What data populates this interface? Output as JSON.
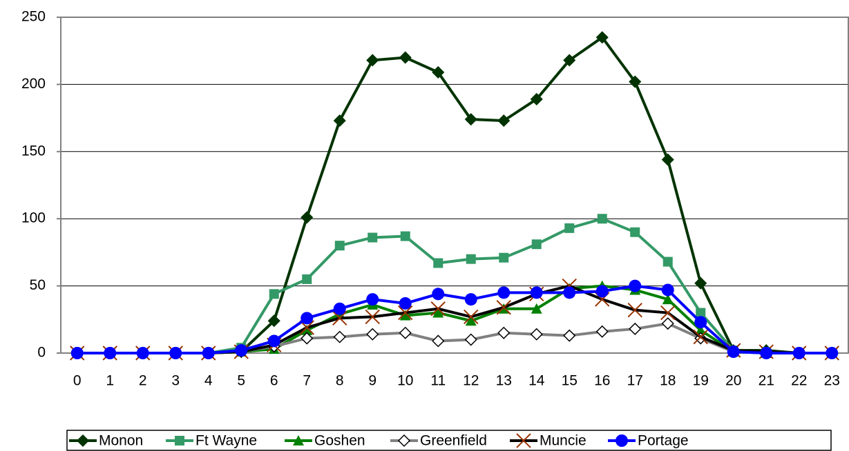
{
  "chart_data": {
    "type": "line",
    "categories": [
      "0",
      "1",
      "2",
      "3",
      "4",
      "5",
      "6",
      "7",
      "8",
      "9",
      "10",
      "11",
      "12",
      "13",
      "14",
      "15",
      "16",
      "17",
      "18",
      "19",
      "20",
      "21",
      "22",
      "23"
    ],
    "ylim": [
      0,
      250
    ],
    "yticks": [
      0,
      50,
      100,
      150,
      200,
      250
    ],
    "grid": true,
    "legend": "bottom",
    "series": [
      {
        "name": "Monon",
        "color": "#003300",
        "marker": "diamond",
        "values": [
          0,
          0,
          0,
          0,
          0,
          1,
          24,
          101,
          173,
          218,
          220,
          209,
          174,
          173,
          189,
          218,
          235,
          202,
          144,
          52,
          2,
          2,
          0,
          0
        ]
      },
      {
        "name": "Ft Wayne",
        "color": "#339966",
        "marker": "square",
        "values": [
          0,
          0,
          0,
          0,
          0,
          4,
          44,
          55,
          80,
          86,
          87,
          67,
          70,
          71,
          81,
          93,
          100,
          90,
          68,
          30,
          2,
          1,
          0,
          0
        ]
      },
      {
        "name": "Goshen",
        "color": "#008000",
        "marker": "triangle",
        "values": [
          0,
          0,
          0,
          0,
          0,
          1,
          3,
          17,
          29,
          36,
          28,
          30,
          24,
          33,
          33,
          48,
          50,
          47,
          40,
          17,
          1,
          0,
          0,
          0
        ]
      },
      {
        "name": "Greenfield",
        "color": "#808080",
        "marker": "open-diamond",
        "values": [
          0,
          0,
          0,
          0,
          0,
          1,
          5,
          11,
          12,
          14,
          15,
          9,
          10,
          15,
          14,
          13,
          16,
          18,
          22,
          11,
          1,
          0,
          0,
          0
        ]
      },
      {
        "name": "Muncie",
        "color": "#000000",
        "marker": "x",
        "marker_color": "#993300",
        "values": [
          0,
          0,
          0,
          0,
          0,
          1,
          6,
          19,
          26,
          27,
          30,
          33,
          27,
          34,
          44,
          50,
          40,
          32,
          30,
          12,
          2,
          1,
          0,
          0
        ]
      },
      {
        "name": "Portage",
        "color": "#0000ff",
        "marker": "circle",
        "values": [
          0,
          0,
          0,
          0,
          0,
          2,
          9,
          26,
          33,
          40,
          37,
          44,
          40,
          45,
          45,
          45,
          46,
          50,
          47,
          23,
          1,
          0,
          0,
          0
        ]
      }
    ]
  }
}
